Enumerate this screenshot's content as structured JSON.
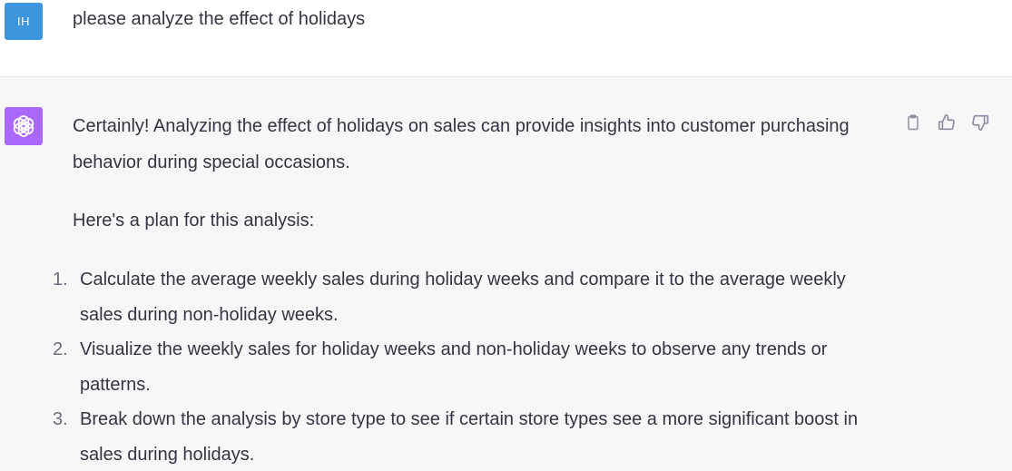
{
  "user_message": {
    "avatar_initials": "IH",
    "avatar_color": "#3b96dd",
    "text": "please analyze the effect of holidays"
  },
  "assistant_message": {
    "avatar_color": "#ab68ff",
    "avatar_icon": "openai-logo-icon",
    "intro": "Certainly! Analyzing the effect of holidays on sales can provide insights into customer purchasing behavior during special occasions.",
    "plan_heading": "Here's a plan for this analysis:",
    "steps": [
      {
        "num": "1.",
        "text": "Calculate the average weekly sales during holiday weeks and compare it to the average weekly sales during non-holiday weeks."
      },
      {
        "num": "2.",
        "text": "Visualize the weekly sales for holiday weeks and non-holiday weeks to observe any trends or patterns."
      },
      {
        "num": "3.",
        "text": "Break down the analysis by store type to see if certain store types see a more significant boost in sales during holidays."
      }
    ],
    "actions": [
      "copy-icon",
      "thumbs-up-icon",
      "thumbs-down-icon"
    ]
  }
}
